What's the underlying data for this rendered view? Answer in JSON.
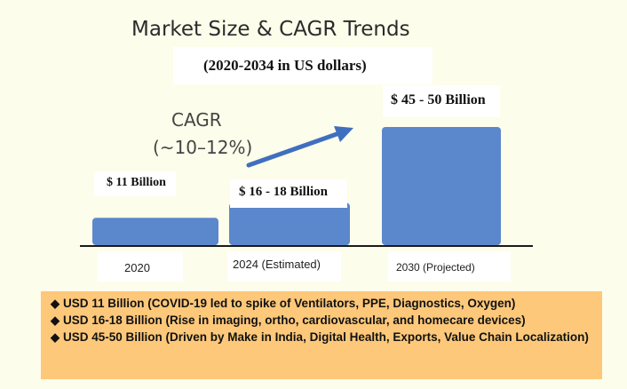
{
  "chart_data": {
    "type": "bar",
    "title": "Market Size & CAGR Trends",
    "subtitle": "(2020-2034 in US dollars)",
    "categories": [
      "2020",
      "2024 (Estimated)",
      "2030 (Projected)"
    ],
    "values": [
      11,
      17,
      47.5
    ],
    "value_labels": [
      "$ 11 Billion",
      "$ 16 - 18 Billion",
      "$ 45 - 50 Billion"
    ],
    "bar_color": "#5b87cc",
    "annotation": {
      "line1": "CAGR",
      "line2": "(~10–12%)"
    },
    "ylim": [
      0,
      52
    ],
    "grid": false
  },
  "notes": [
    "USD 11 Billion (COVID-19 led to spike of Ventilators, PPE, Diagnostics, Oxygen)",
    "USD 16-18 Billion (Rise in imaging, ortho, cardiovascular, and homecare devices)",
    "USD 45-50 Billion (Driven by Make in India, Digital Health, Exports, Value Chain Localization)"
  ],
  "colors": {
    "notes_bg": "#fdc87a",
    "page_bg": "#fdfdeb",
    "arrow": "#3f6fbf"
  }
}
